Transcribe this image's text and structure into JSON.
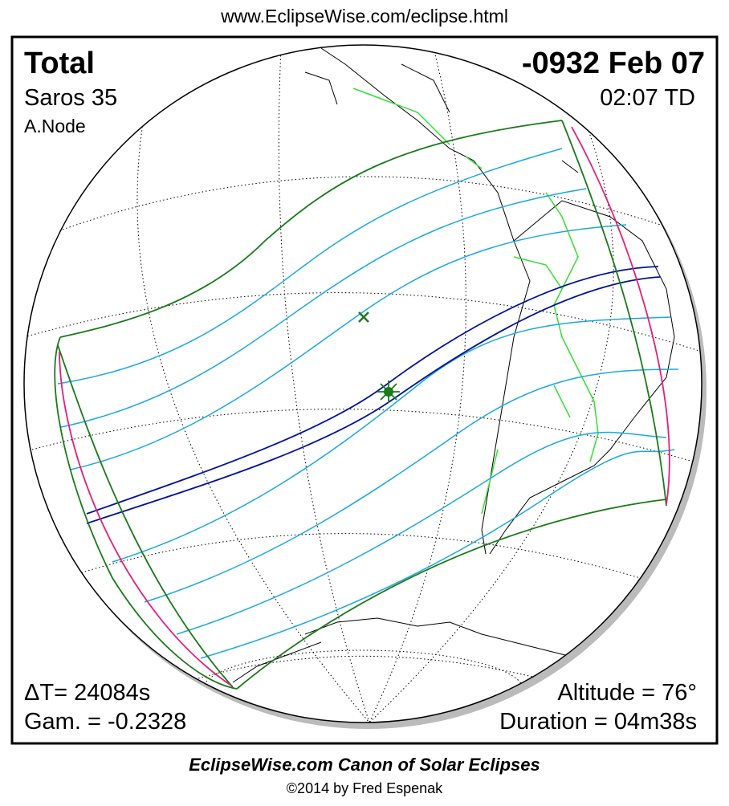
{
  "header": {
    "url": "www.EclipseWise.com/eclipse.html"
  },
  "panel": {
    "type": "Total",
    "saros": "Saros  35",
    "node": "A.Node",
    "date": "-0932 Feb 07",
    "time": "02:07 TD",
    "delta_t": "ΔT=  24084s",
    "gamma": "Gam. = -0.2328",
    "altitude": "Altitude = 76°",
    "duration": "Duration = 04m38s"
  },
  "footer": {
    "title": "EclipseWise.com Canon of Solar Eclipses",
    "credit": "©2014 by Fred Espenak"
  }
}
